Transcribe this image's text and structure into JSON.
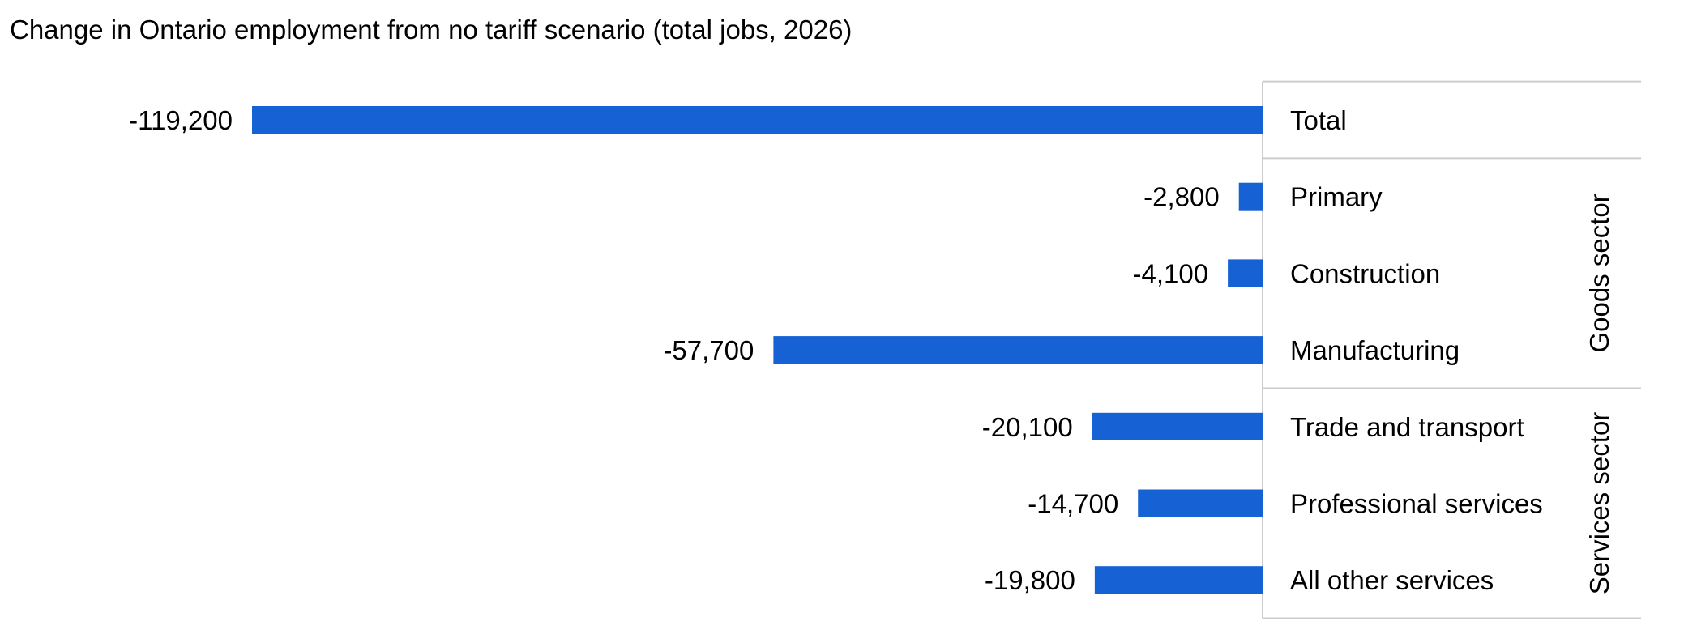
{
  "chart_data": {
    "type": "bar",
    "orientation": "horizontal",
    "title": "Change in Ontario employment from no tariff scenario (total jobs, 2026)",
    "xlabel": "",
    "ylabel": "",
    "categories": [
      "Total",
      "Primary",
      "Construction",
      "Manufacturing",
      "Trade and transport",
      "Professional services",
      "All other services"
    ],
    "values": [
      -119200,
      -2800,
      -4100,
      -57700,
      -20100,
      -14700,
      -19800
    ],
    "value_labels": [
      "-119,200",
      "-2,800",
      "-4,100",
      "-57,700",
      "-20,100",
      "-14,700",
      "-19,800"
    ],
    "groups": [
      {
        "label": "Goods sector",
        "categories": [
          "Primary",
          "Construction",
          "Manufacturing"
        ]
      },
      {
        "label": "Services sector",
        "categories": [
          "Trade and transport",
          "Professional services",
          "All other services"
        ]
      }
    ],
    "xlim": [
      -119200,
      0
    ],
    "grid": false,
    "legend": "none",
    "colors": {
      "bar": "#1662d4",
      "separator": "#cccccc",
      "text": "#000000"
    }
  }
}
